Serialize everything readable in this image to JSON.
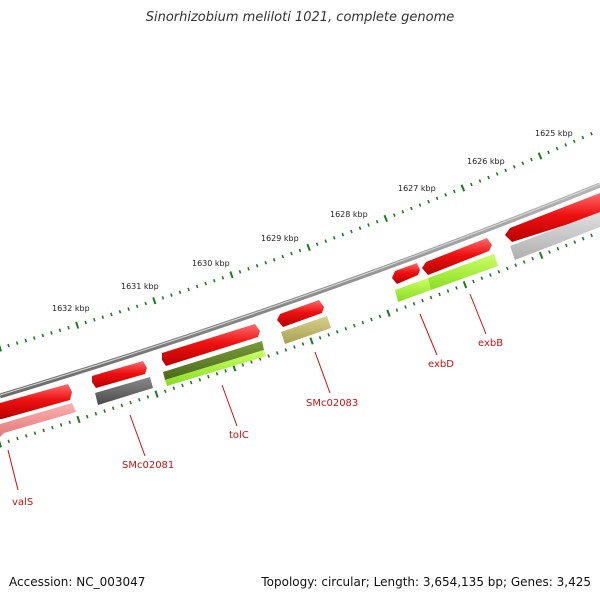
{
  "title": "Sinorhizobium meliloti 1021, complete genome",
  "footer": {
    "accession": "Accession: NC_003047",
    "topology": "Topology: circular; Length: 3,654,135 bp; Genes: 3,425"
  },
  "colors": {
    "backbone": "#8c8c8c",
    "forward_feature": "#ee1111",
    "ticks": "#1f7a1f",
    "gene_label": "#cc1111"
  },
  "kbp_ticks": [
    {
      "kbp": 1625,
      "label": "1625 kbp"
    },
    {
      "kbp": 1626,
      "label": "1626 kbp"
    },
    {
      "kbp": 1627,
      "label": "1627 kbp"
    },
    {
      "kbp": 1628,
      "label": "1628 kbp"
    },
    {
      "kbp": 1629,
      "label": "1629 kbp"
    },
    {
      "kbp": 1630,
      "label": "1630 kbp"
    },
    {
      "kbp": 1631,
      "label": "1631 kbp"
    },
    {
      "kbp": 1632,
      "label": "1632 kbp"
    }
  ],
  "gene_labels": [
    "valS",
    "SMc02081",
    "tolC",
    "SMc02083",
    "exbD",
    "exbB"
  ]
}
